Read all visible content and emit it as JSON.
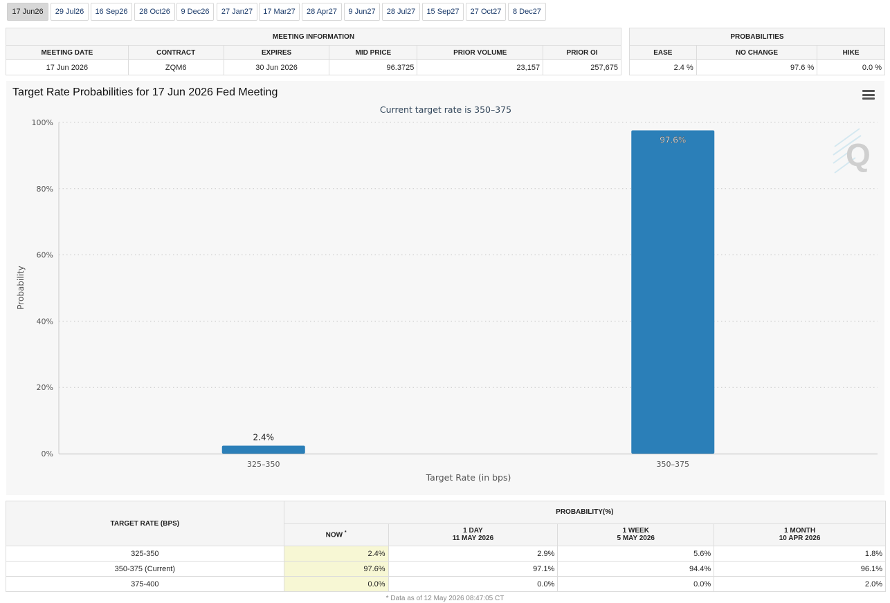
{
  "tabs": [
    "17 Jun26",
    "29 Jul26",
    "16 Sep26",
    "28 Oct26",
    "9 Dec26",
    "27 Jan27",
    "17 Mar27",
    "28 Apr27",
    "9 Jun27",
    "28 Jul27",
    "15 Sep27",
    "27 Oct27",
    "8 Dec27"
  ],
  "active_tab": "17 Jun26",
  "meeting_info": {
    "title": "MEETING INFORMATION",
    "headers": [
      "MEETING DATE",
      "CONTRACT",
      "EXPIRES",
      "MID PRICE",
      "PRIOR VOLUME",
      "PRIOR OI"
    ],
    "values": [
      "17 Jun 2026",
      "ZQM6",
      "30 Jun 2026",
      "96.3725",
      "23,157",
      "257,675"
    ]
  },
  "probabilities": {
    "title": "PROBABILITIES",
    "headers": [
      "EASE",
      "NO CHANGE",
      "HIKE"
    ],
    "values": [
      "2.4 %",
      "97.6 %",
      "0.0 %"
    ]
  },
  "chart_menu_icon": "hamburger-menu-icon",
  "watermark_icon": "q-logo-icon",
  "chart_data": {
    "type": "bar",
    "title": "Target Rate Probabilities for 17 Jun 2026 Fed Meeting",
    "subtitle": "Current target rate is 350–375",
    "xlabel": "Target Rate (in bps)",
    "ylabel": "Probability",
    "categories": [
      "325–350",
      "350–375"
    ],
    "values": [
      2.4,
      97.6
    ],
    "data_labels": [
      "2.4%",
      "97.6%"
    ],
    "ylim": [
      0,
      100
    ],
    "yticks": [
      "0%",
      "20%",
      "40%",
      "60%",
      "80%",
      "100%"
    ],
    "grid": true,
    "bar_color": "#2b7fb8"
  },
  "prob_table": {
    "rate_header": "TARGET RATE (BPS)",
    "group_header": "PROBABILITY(%)",
    "now_label": "NOW",
    "now_mark": "*",
    "columns": [
      {
        "l1": "1 DAY",
        "l2": "11 MAY 2026"
      },
      {
        "l1": "1 WEEK",
        "l2": "5 MAY 2026"
      },
      {
        "l1": "1 MONTH",
        "l2": "10 APR 2026"
      }
    ],
    "rows": [
      {
        "rate": "325-350",
        "now": "2.4%",
        "d1": "2.9%",
        "w1": "5.6%",
        "m1": "1.8%"
      },
      {
        "rate": "350-375 (Current)",
        "now": "97.6%",
        "d1": "97.1%",
        "w1": "94.4%",
        "m1": "96.1%"
      },
      {
        "rate": "375-400",
        "now": "0.0%",
        "d1": "0.0%",
        "w1": "0.0%",
        "m1": "2.0%"
      }
    ],
    "footnote": "* Data as of 12 May 2026 08:47:05 CT"
  }
}
